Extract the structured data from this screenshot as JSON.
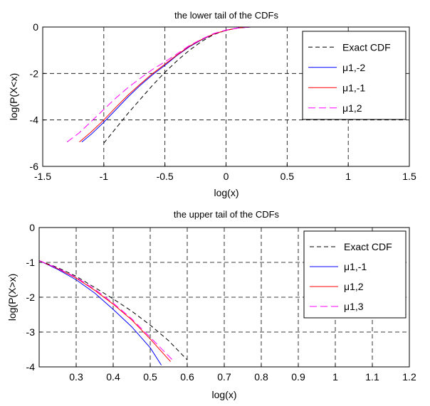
{
  "chart_data": [
    {
      "type": "line",
      "title": "the lower tail of the CDFs",
      "xlabel": "log(x)",
      "ylabel": "log(P(X<x)",
      "xlim": [
        -1.5,
        1.5
      ],
      "ylim": [
        -6,
        0
      ],
      "xticks": [
        -1.5,
        -1,
        -0.5,
        0,
        0.5,
        1,
        1.5
      ],
      "xtick_labels": [
        "-1.5",
        "-1",
        "-0.5",
        "0",
        "0.5",
        "1",
        "1.5"
      ],
      "yticks": [
        -6,
        -4,
        -2,
        0
      ],
      "ytick_labels": [
        "-6",
        "-4",
        "-2",
        "0"
      ],
      "grid": true,
      "legend_position": "top-right",
      "series": [
        {
          "name": "Exact CDF",
          "color": "#000000",
          "dash": "6,4",
          "x": [
            -1.0,
            -0.9,
            -0.8,
            -0.7,
            -0.6,
            -0.5,
            -0.4,
            -0.3,
            -0.2,
            -0.1,
            0.0,
            0.1,
            0.2,
            0.3,
            0.5,
            1.0,
            1.2
          ],
          "y": [
            -5.0,
            -4.35,
            -3.7,
            -3.1,
            -2.5,
            -1.95,
            -1.45,
            -1.0,
            -0.62,
            -0.32,
            -0.14,
            -0.04,
            0.0,
            0.0,
            0.0,
            0.0,
            0.0
          ]
        },
        {
          "name": "μ1,-2",
          "color": "#0000ff",
          "dash": "",
          "x": [
            -1.18,
            -1.1,
            -1.0,
            -0.9,
            -0.8,
            -0.7,
            -0.6,
            -0.5,
            -0.4,
            -0.3,
            -0.2,
            -0.1,
            0.0,
            0.1,
            0.2,
            0.3,
            0.5,
            1.0,
            1.2
          ],
          "y": [
            -4.95,
            -4.6,
            -4.1,
            -3.55,
            -3.0,
            -2.5,
            -2.05,
            -1.65,
            -1.22,
            -0.85,
            -0.55,
            -0.3,
            -0.14,
            -0.04,
            0.0,
            0.0,
            0.0,
            0.0,
            0.0
          ]
        },
        {
          "name": "μ1,-1",
          "color": "#ff0000",
          "dash": "",
          "x": [
            -1.2,
            -1.1,
            -1.0,
            -0.9,
            -0.8,
            -0.7,
            -0.6,
            -0.5,
            -0.4,
            -0.3,
            -0.2,
            -0.1,
            0.0,
            0.1,
            0.2,
            0.3,
            0.5,
            1.0,
            1.2
          ],
          "y": [
            -4.95,
            -4.5,
            -4.0,
            -3.45,
            -2.92,
            -2.45,
            -2.0,
            -1.6,
            -1.2,
            -0.83,
            -0.54,
            -0.3,
            -0.14,
            -0.04,
            0.0,
            0.0,
            0.0,
            0.0,
            0.0
          ]
        },
        {
          "name": "μ1,2",
          "color": "#ff00ff",
          "dash": "10,5",
          "x": [
            -1.3,
            -1.2,
            -1.1,
            -1.0,
            -0.9,
            -0.8,
            -0.7,
            -0.6,
            -0.5,
            -0.4,
            -0.3,
            -0.2,
            -0.1,
            0.0,
            0.1,
            0.2,
            0.3,
            0.5,
            1.0,
            1.2
          ],
          "y": [
            -4.95,
            -4.55,
            -4.05,
            -3.55,
            -3.05,
            -2.6,
            -2.2,
            -1.82,
            -1.5,
            -1.15,
            -0.8,
            -0.52,
            -0.28,
            -0.13,
            -0.04,
            0.0,
            0.0,
            0.0,
            0.0,
            0.0
          ]
        }
      ]
    },
    {
      "type": "line",
      "title": "the upper tail of the CDFs",
      "xlabel": "log(x)",
      "ylabel": "log(P(X>x)",
      "xlim": [
        0.2,
        1.2
      ],
      "ylim": [
        -4,
        0
      ],
      "xticks": [
        0.3,
        0.4,
        0.5,
        0.6,
        0.7,
        0.8,
        0.9,
        1.0,
        1.1,
        1.2
      ],
      "xtick_labels": [
        "0.3",
        "0.4",
        "0.5",
        "0.6",
        "0.7",
        "0.8",
        "0.9",
        "1",
        "1.1",
        "1.2"
      ],
      "yticks": [
        -4,
        -3,
        -2,
        -1,
        0
      ],
      "ytick_labels": [
        "-4",
        "-3",
        "-2",
        "-1",
        "0"
      ],
      "grid": true,
      "legend_position": "top-right",
      "series": [
        {
          "name": "Exact CDF",
          "color": "#000000",
          "dash": "6,4",
          "x": [
            0.2,
            0.25,
            0.3,
            0.35,
            0.4,
            0.45,
            0.5,
            0.55,
            0.6
          ],
          "y": [
            -0.95,
            -1.15,
            -1.4,
            -1.72,
            -2.05,
            -2.4,
            -2.8,
            -3.25,
            -3.8
          ]
        },
        {
          "name": "μ1,-1",
          "color": "#0000ff",
          "dash": "",
          "x": [
            0.2,
            0.25,
            0.3,
            0.35,
            0.4,
            0.45,
            0.5,
            0.53
          ],
          "y": [
            -0.95,
            -1.2,
            -1.5,
            -1.88,
            -2.35,
            -2.85,
            -3.45,
            -3.95
          ]
        },
        {
          "name": "μ1,2",
          "color": "#ff0000",
          "dash": "",
          "x": [
            0.2,
            0.25,
            0.3,
            0.35,
            0.4,
            0.45,
            0.5,
            0.555
          ],
          "y": [
            -0.95,
            -1.18,
            -1.45,
            -1.8,
            -2.2,
            -2.65,
            -3.2,
            -3.85
          ]
        },
        {
          "name": "μ1,3",
          "color": "#ff00ff",
          "dash": "10,5",
          "x": [
            0.2,
            0.25,
            0.3,
            0.35,
            0.4,
            0.45,
            0.5,
            0.56
          ],
          "y": [
            -0.95,
            -1.17,
            -1.43,
            -1.77,
            -2.17,
            -2.62,
            -3.15,
            -3.8
          ]
        }
      ]
    }
  ]
}
